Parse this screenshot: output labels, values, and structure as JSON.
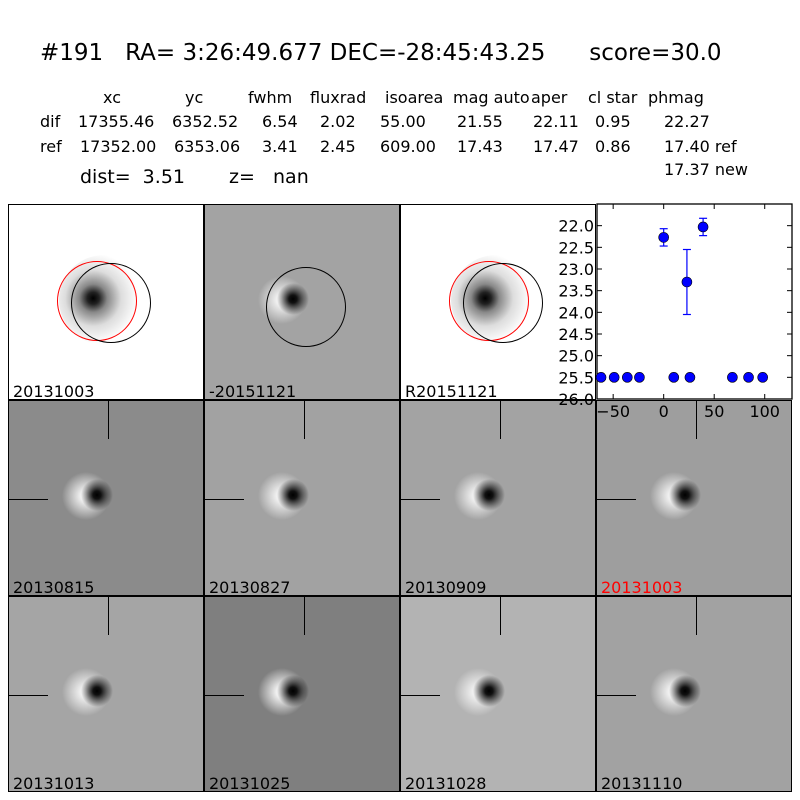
{
  "header": {
    "title": "#191   RA= 3:26:49.677 DEC=-28:45:43.25      score=30.0",
    "columns": [
      "xc",
      "yc",
      "fwhm",
      "fluxrad",
      "isoarea",
      "mag auto",
      "aper",
      "cl star",
      "phmag"
    ],
    "rows": [
      {
        "label": "dif",
        "values": [
          "17355.46",
          "6352.52",
          "6.54",
          "2.02",
          "55.00",
          "21.55",
          "22.11",
          "0.95",
          "22.27"
        ]
      },
      {
        "label": "ref",
        "values": [
          "17352.00",
          "6353.06",
          "3.41",
          "2.45",
          "609.00",
          "17.43",
          "17.47",
          "0.86",
          "17.40 ref"
        ]
      }
    ],
    "extra_phmag": "17.37 new",
    "dist": "dist=  3.51",
    "z": "z=   nan"
  },
  "stamps": [
    {
      "label": "20131003",
      "bg": "#ffffff",
      "type": "ref"
    },
    {
      "label": "-20151121",
      "bg": "#a3a3a3",
      "type": "diff-circle"
    },
    {
      "label": "R20151121",
      "bg": "#ffffff",
      "type": "ref"
    },
    {
      "label": "20130815",
      "bg": "#8b8b8b",
      "type": "cross"
    },
    {
      "label": "20130827",
      "bg": "#a2a2a2",
      "type": "cross"
    },
    {
      "label": "20130909",
      "bg": "#a3a3a3",
      "type": "cross"
    },
    {
      "label": "20131003",
      "bg": "#9e9e9e",
      "type": "cross",
      "label_color": "#ff0000"
    },
    {
      "label": "20131013",
      "bg": "#a5a5a5",
      "type": "cross"
    },
    {
      "label": "20131025",
      "bg": "#7f7f7f",
      "type": "cross"
    },
    {
      "label": "20131028",
      "bg": "#b3b3b3",
      "type": "cross"
    },
    {
      "label": "20131110",
      "bg": "#a2a2a2",
      "type": "cross"
    }
  ],
  "chart_data": {
    "type": "scatter",
    "xlim": [
      -66,
      127
    ],
    "ylim": [
      26.0,
      21.5
    ],
    "y_inverted": true,
    "xticks": [
      -50,
      0,
      50,
      100
    ],
    "yticks": [
      "22.0",
      "22.5",
      "23.0",
      "23.5",
      "24.0",
      "24.5",
      "25.0",
      "25.5",
      "26.0"
    ],
    "color": "#0000ff",
    "points": [
      {
        "x": -62,
        "y": 25.5,
        "err": 0.05
      },
      {
        "x": -49,
        "y": 25.5,
        "err": 0.05
      },
      {
        "x": -36,
        "y": 25.5,
        "err": 0.05
      },
      {
        "x": -24,
        "y": 25.5,
        "err": 0.05
      },
      {
        "x": 0,
        "y": 22.27,
        "err": 0.2
      },
      {
        "x": 10,
        "y": 25.5,
        "err": 0.05
      },
      {
        "x": 23,
        "y": 23.3,
        "err": 0.75
      },
      {
        "x": 26,
        "y": 25.5,
        "err": 0.05
      },
      {
        "x": 39,
        "y": 22.03,
        "err": 0.2
      },
      {
        "x": 68,
        "y": 25.5,
        "err": 0.05
      },
      {
        "x": 84,
        "y": 25.5,
        "err": 0.05
      },
      {
        "x": 98,
        "y": 25.5,
        "err": 0.05
      }
    ]
  }
}
